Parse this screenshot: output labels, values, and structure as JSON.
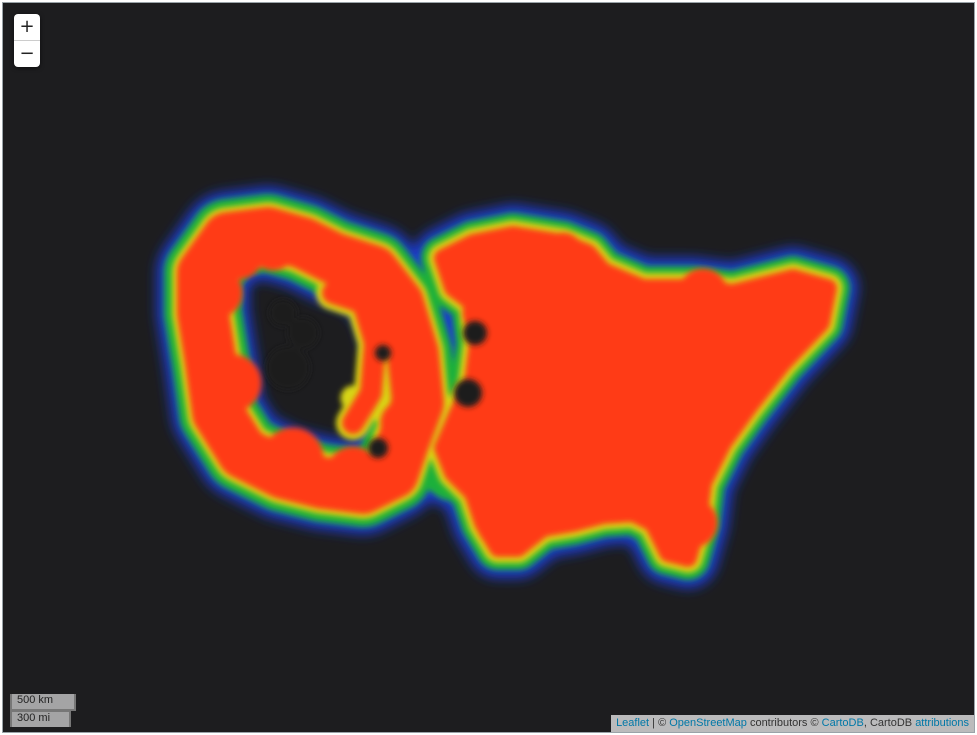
{
  "map": {
    "basemap": "dark",
    "overlay": "heatmap",
    "heat_gradient": [
      "#1a3acb",
      "#1fb03a",
      "#d8d617",
      "#ff3b12"
    ],
    "background_color": "#1d1d1f"
  },
  "zoom": {
    "zoom_in_label": "+",
    "zoom_out_label": "−"
  },
  "scale": {
    "metric": "500 km",
    "imperial": "300 mi"
  },
  "attribution": {
    "leaflet": "Leaflet",
    "separator": " | © ",
    "osm": "OpenStreetMap",
    "contributors": " contributors © ",
    "cartodb_link": "CartoDB",
    "comma": ", CartoDB ",
    "attributions": "attributions"
  }
}
